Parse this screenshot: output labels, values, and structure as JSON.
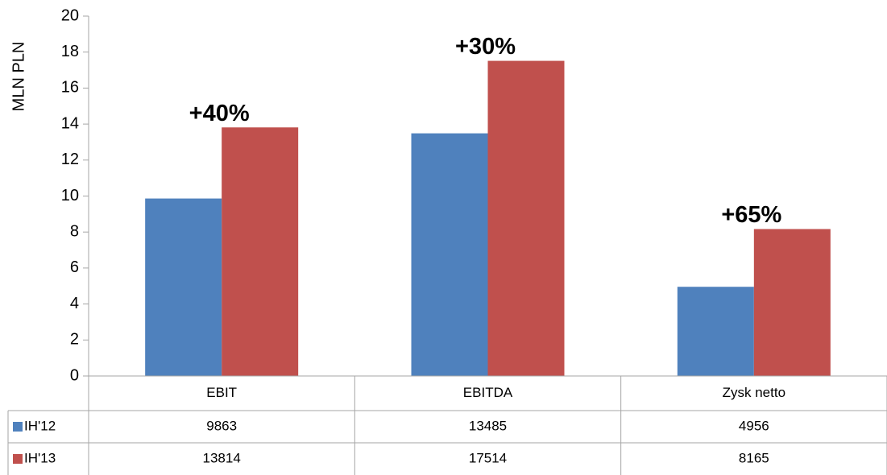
{
  "chart_data": {
    "type": "bar",
    "y_axis_label": "MLN PLN",
    "categories": [
      "EBIT",
      "EBITDA",
      "Zysk netto"
    ],
    "series": [
      {
        "name": "IH'12",
        "color": "#4f81bd",
        "values": [
          9.863,
          13.485,
          4.956
        ],
        "value_labels": [
          "9863",
          "13485",
          "4956"
        ]
      },
      {
        "name": "IH'13",
        "color": "#c0504d",
        "values": [
          13.814,
          17.514,
          8.165
        ],
        "value_labels": [
          "13814",
          "17514",
          "8165"
        ]
      }
    ],
    "annotations": [
      "+40%",
      "+30%",
      "+65%"
    ],
    "ylim": [
      0,
      20
    ],
    "yticks": [
      0,
      2,
      4,
      6,
      8,
      10,
      12,
      14,
      16,
      18,
      20
    ]
  }
}
